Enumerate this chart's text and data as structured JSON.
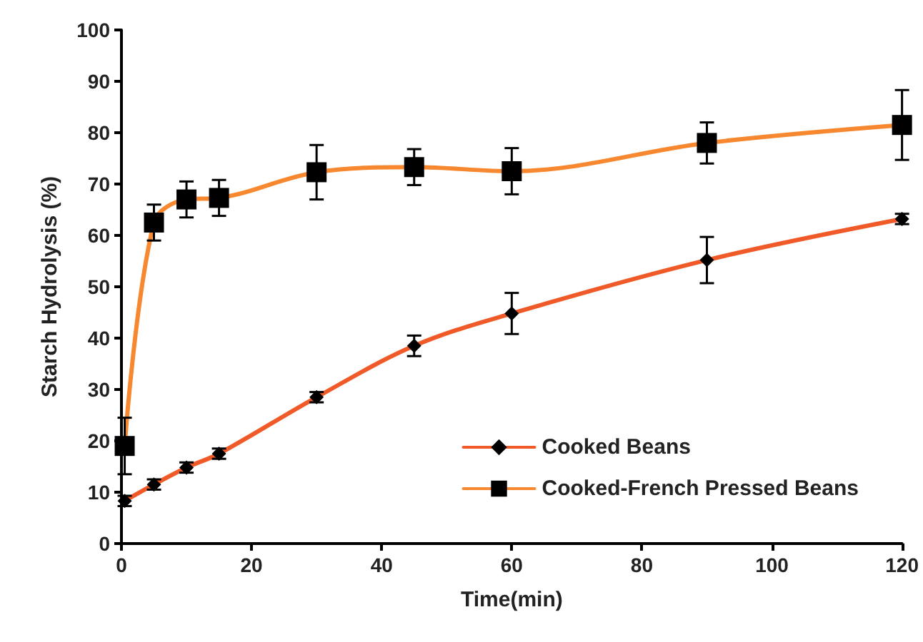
{
  "chart_data": {
    "type": "line",
    "xlabel": "Time(min)",
    "ylabel": "Starch Hydrolysis (%)",
    "x": [
      0.5,
      5,
      10,
      15,
      30,
      45,
      60,
      90,
      120
    ],
    "series": [
      {
        "name": "Cooked Beans",
        "color": "#f05a28",
        "marker": "diamond",
        "values": [
          8.3,
          11.5,
          14.8,
          17.5,
          28.5,
          38.5,
          44.8,
          55.2,
          63.2
        ],
        "errors": [
          1,
          1,
          1,
          1,
          1,
          2,
          4,
          4.5,
          1
        ]
      },
      {
        "name": "Cooked-French Pressed Beans",
        "color": "#f7882f",
        "marker": "square",
        "values": [
          19,
          62.5,
          67,
          67.3,
          72.3,
          73.3,
          72.5,
          78,
          81.5
        ],
        "errors": [
          5.5,
          3.5,
          3.5,
          3.5,
          5.3,
          3.5,
          4.5,
          4,
          6.8
        ]
      }
    ],
    "xlim": [
      0,
      120
    ],
    "xticks": [
      0,
      20,
      40,
      60,
      80,
      100,
      120
    ],
    "ylim": [
      0,
      100
    ],
    "yticks": [
      0,
      10,
      20,
      30,
      40,
      50,
      60,
      70,
      80,
      90,
      100
    ],
    "grid": false,
    "legend": "bottom right",
    "line_style": "solid"
  }
}
